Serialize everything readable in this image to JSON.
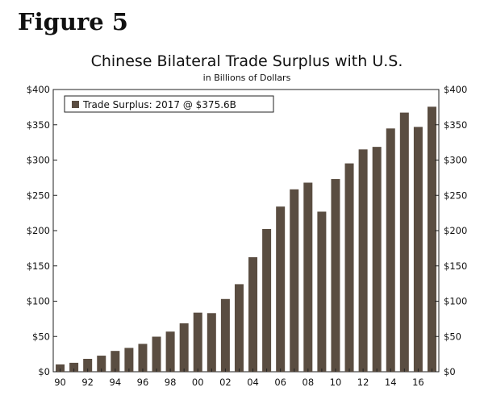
{
  "figure_label": "Figure 5",
  "chart_data": {
    "type": "bar",
    "title": "Chinese Bilateral Trade Surplus with U.S.",
    "subtitle": "in Billions of Dollars",
    "legend": {
      "label": "Trade Surplus: 2017 @ $375.6B",
      "position": "top-left"
    },
    "colors": {
      "bar": "#5a4d41"
    },
    "categories": [
      "1990",
      "1991",
      "1992",
      "1993",
      "1994",
      "1995",
      "1996",
      "1997",
      "1998",
      "1999",
      "2000",
      "2001",
      "2002",
      "2003",
      "2004",
      "2005",
      "2006",
      "2007",
      "2008",
      "2009",
      "2010",
      "2011",
      "2012",
      "2013",
      "2014",
      "2015",
      "2016",
      "2017"
    ],
    "x_tick_labels": [
      "90",
      "92",
      "94",
      "96",
      "98",
      "00",
      "02",
      "04",
      "06",
      "08",
      "10",
      "12",
      "14",
      "16"
    ],
    "values": [
      10.4,
      12.7,
      18.3,
      22.8,
      29.5,
      33.8,
      39.5,
      49.7,
      56.9,
      68.7,
      83.8,
      83.1,
      103.1,
      124.1,
      162.3,
      202.3,
      234.1,
      258.5,
      268.0,
      226.9,
      273.1,
      295.3,
      315.1,
      318.7,
      344.8,
      367.3,
      347.0,
      375.6
    ],
    "ylim": [
      0,
      400
    ],
    "y_tick_labels": [
      "$0",
      "$50",
      "$100",
      "$150",
      "$200",
      "$250",
      "$300",
      "$350",
      "$400"
    ],
    "grid": false
  }
}
